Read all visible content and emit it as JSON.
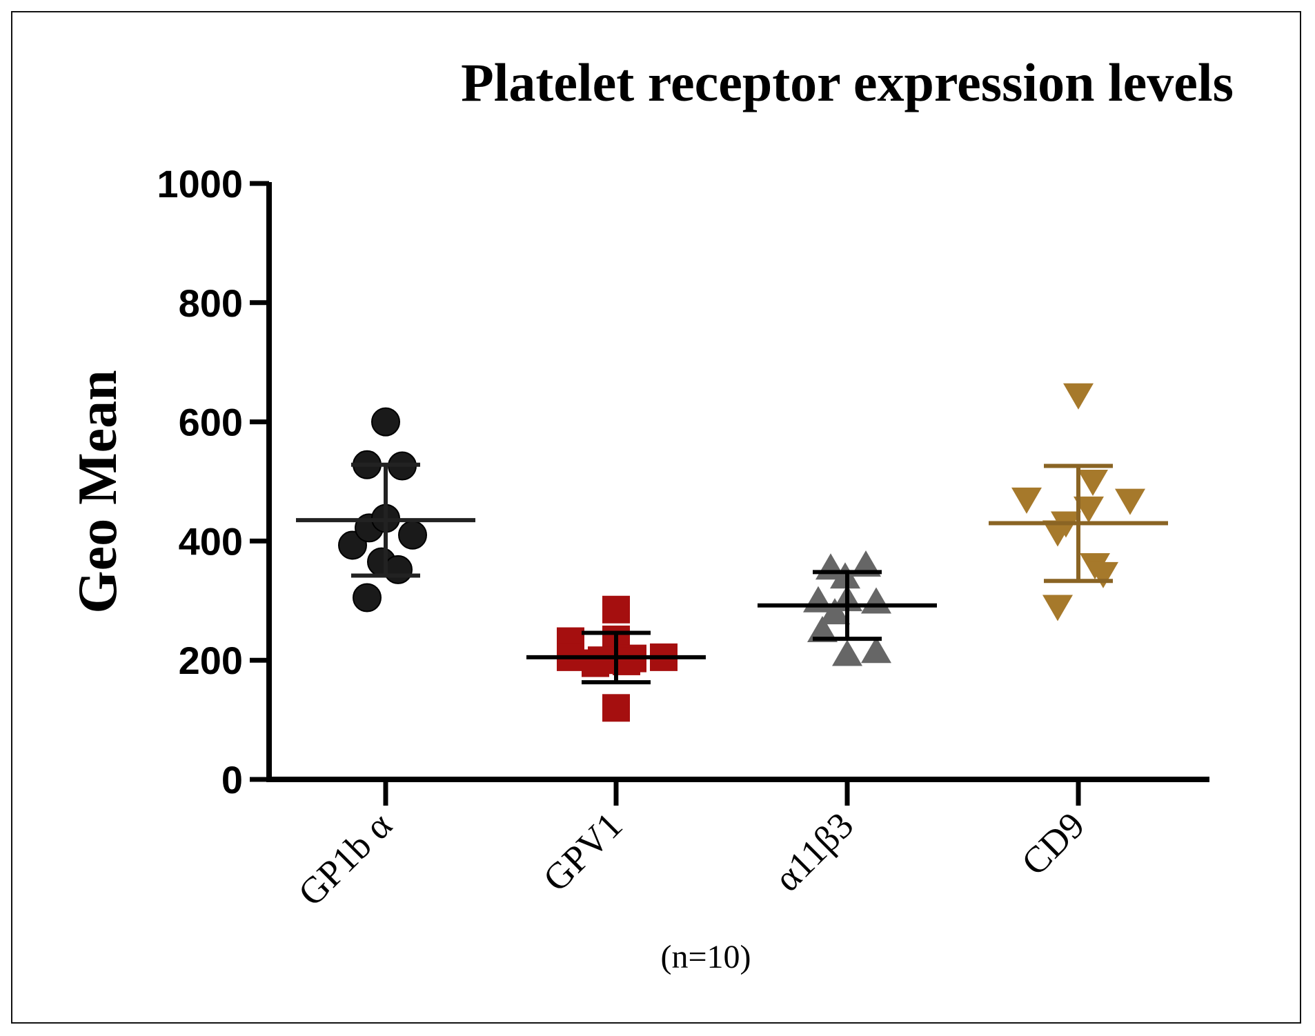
{
  "chart_data": {
    "type": "scatter",
    "title": "Platelet receptor expression levels",
    "ylabel": "Geo Mean",
    "xlabel": "",
    "footnote": "(n=10)",
    "ylim": [
      0,
      1000
    ],
    "yticks": [
      "0",
      "200",
      "400",
      "600",
      "800",
      "1000"
    ],
    "categories": [
      "GP1b α",
      "GPV1",
      "α11β3",
      "CD9"
    ],
    "series": [
      {
        "category": "GP1b α",
        "marker": "circle",
        "color": "#1a1a1a",
        "points": [
          {
            "offset": 0.0,
            "y": 600
          },
          {
            "offset": -0.09,
            "y": 528
          },
          {
            "offset": 0.08,
            "y": 526
          },
          {
            "offset": -0.16,
            "y": 393
          },
          {
            "offset": -0.08,
            "y": 422
          },
          {
            "offset": 0.0,
            "y": 438
          },
          {
            "offset": 0.13,
            "y": 410
          },
          {
            "offset": -0.02,
            "y": 365
          },
          {
            "offset": 0.06,
            "y": 352
          },
          {
            "offset": -0.09,
            "y": 305
          }
        ],
        "mean": 435,
        "sd_upper": 528,
        "sd_lower": 342
      },
      {
        "category": "GPV1",
        "marker": "square",
        "color": "#a50f0f",
        "points": [
          {
            "offset": 0.0,
            "y": 285
          },
          {
            "offset": -0.22,
            "y": 232
          },
          {
            "offset": 0.0,
            "y": 235
          },
          {
            "offset": -0.22,
            "y": 205
          },
          {
            "offset": -0.07,
            "y": 200
          },
          {
            "offset": 0.08,
            "y": 203
          },
          {
            "offset": 0.23,
            "y": 205
          },
          {
            "offset": -0.1,
            "y": 195
          },
          {
            "offset": 0.05,
            "y": 198
          },
          {
            "offset": 0.0,
            "y": 120
          }
        ],
        "mean": 205,
        "sd_upper": 246,
        "sd_lower": 163
      },
      {
        "category": "α11β3",
        "marker": "triangle-up",
        "color": "#666666",
        "points": [
          {
            "offset": -0.08,
            "y": 355
          },
          {
            "offset": 0.09,
            "y": 360
          },
          {
            "offset": -0.01,
            "y": 340
          },
          {
            "offset": -0.14,
            "y": 300
          },
          {
            "offset": 0.0,
            "y": 302
          },
          {
            "offset": 0.14,
            "y": 298
          },
          {
            "offset": -0.06,
            "y": 280
          },
          {
            "offset": -0.12,
            "y": 250
          },
          {
            "offset": 0.0,
            "y": 210
          },
          {
            "offset": 0.14,
            "y": 215
          }
        ],
        "mean": 292,
        "sd_upper": 348,
        "sd_lower": 236
      },
      {
        "category": "CD9",
        "marker": "triangle-down",
        "color": "#a6792b",
        "points": [
          {
            "offset": 0.0,
            "y": 645
          },
          {
            "offset": 0.07,
            "y": 500
          },
          {
            "offset": -0.25,
            "y": 470
          },
          {
            "offset": 0.25,
            "y": 468
          },
          {
            "offset": -0.06,
            "y": 430
          },
          {
            "offset": 0.05,
            "y": 455
          },
          {
            "offset": -0.1,
            "y": 415
          },
          {
            "offset": 0.08,
            "y": 360
          },
          {
            "offset": 0.12,
            "y": 345
          },
          {
            "offset": -0.1,
            "y": 290
          }
        ],
        "mean": 430,
        "sd_upper": 526,
        "sd_lower": 333
      }
    ],
    "grid": false,
    "legend": "none"
  }
}
